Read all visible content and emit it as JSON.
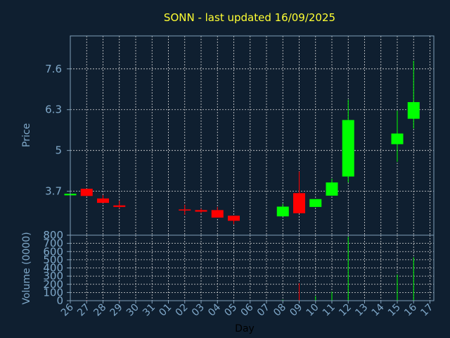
{
  "chart_data": [
    {
      "type": "candlestick",
      "title": "SONN - last updated 16/09/2025",
      "ylabel": "Price",
      "ylim": [
        2.3,
        8.65
      ],
      "yticks": [
        3.7,
        5,
        6.3,
        7.6
      ],
      "ytick_labels": [
        "3.7",
        "5",
        "6.3",
        "7.6"
      ],
      "grid": true,
      "colors": {
        "up": "#00ff00",
        "down": "#ff0000",
        "grid": "#d8d8d8",
        "frame": "#7f9fb8"
      },
      "candles": [
        {
          "day": "26",
          "open": 3.57,
          "close": 3.62,
          "high": 3.65,
          "low": 3.56
        },
        {
          "day": "27",
          "open": 3.78,
          "close": 3.55,
          "high": 3.78,
          "low": 3.55
        },
        {
          "day": "28",
          "open": 3.47,
          "close": 3.33,
          "high": 3.58,
          "low": 3.33
        },
        {
          "day": "29",
          "open": 3.25,
          "close": 3.2,
          "high": 3.4,
          "low": 3.15
        },
        {
          "day": "02",
          "open": 3.12,
          "close": 3.1,
          "high": 3.27,
          "low": 2.95
        },
        {
          "day": "03",
          "open": 3.1,
          "close": 3.05,
          "high": 3.15,
          "low": 3.0
        },
        {
          "day": "04",
          "open": 3.1,
          "close": 2.86,
          "high": 3.2,
          "low": 2.86
        },
        {
          "day": "05",
          "open": 2.92,
          "close": 2.76,
          "high": 2.92,
          "low": 2.65
        },
        {
          "day": "08",
          "open": 2.9,
          "close": 3.21,
          "high": 3.3,
          "low": 2.9
        },
        {
          "day": "09",
          "open": 3.64,
          "close": 3.0,
          "high": 4.33,
          "low": 3.0
        },
        {
          "day": "10",
          "open": 3.2,
          "close": 3.45,
          "high": 3.45,
          "low": 3.2
        },
        {
          "day": "11",
          "open": 3.56,
          "close": 3.98,
          "high": 4.1,
          "low": 3.56
        },
        {
          "day": "12",
          "open": 4.17,
          "close": 5.97,
          "high": 6.62,
          "low": 3.98
        },
        {
          "day": "15",
          "open": 5.2,
          "close": 5.54,
          "high": 6.27,
          "low": 4.64
        },
        {
          "day": "16",
          "open": 6.01,
          "close": 6.54,
          "high": 7.86,
          "low": 5.7
        }
      ]
    },
    {
      "type": "bar",
      "ylabel": "Volume (0000)",
      "xlabel": "Day",
      "ylim": [
        0,
        800
      ],
      "yticks": [
        0,
        100,
        200,
        300,
        400,
        500,
        600,
        700,
        800
      ],
      "categories": [
        "26",
        "27",
        "28",
        "29",
        "30",
        "31",
        "01",
        "02",
        "03",
        "04",
        "05",
        "06",
        "07",
        "08",
        "09",
        "10",
        "11",
        "12",
        "13",
        "14",
        "15",
        "16",
        "17"
      ],
      "values": [
        0,
        8,
        4,
        8,
        0,
        0,
        0,
        6,
        3,
        3,
        2,
        0,
        0,
        12,
        215,
        55,
        110,
        780,
        0,
        0,
        320,
        530,
        0
      ],
      "colors": [
        "#ff0000",
        "#ff0000",
        "#ff0000",
        "#ff0000",
        "#ff0000",
        "#ff0000",
        "#ff0000",
        "#ff0000",
        "#ff0000",
        "#ff0000",
        "#ff0000",
        "#ff0000",
        "#ff0000",
        "#00ff00",
        "#ff0000",
        "#00ff00",
        "#00ff00",
        "#00ff00",
        "#00ff00",
        "#00ff00",
        "#00ff00",
        "#00ff00",
        "#00ff00"
      ]
    }
  ]
}
